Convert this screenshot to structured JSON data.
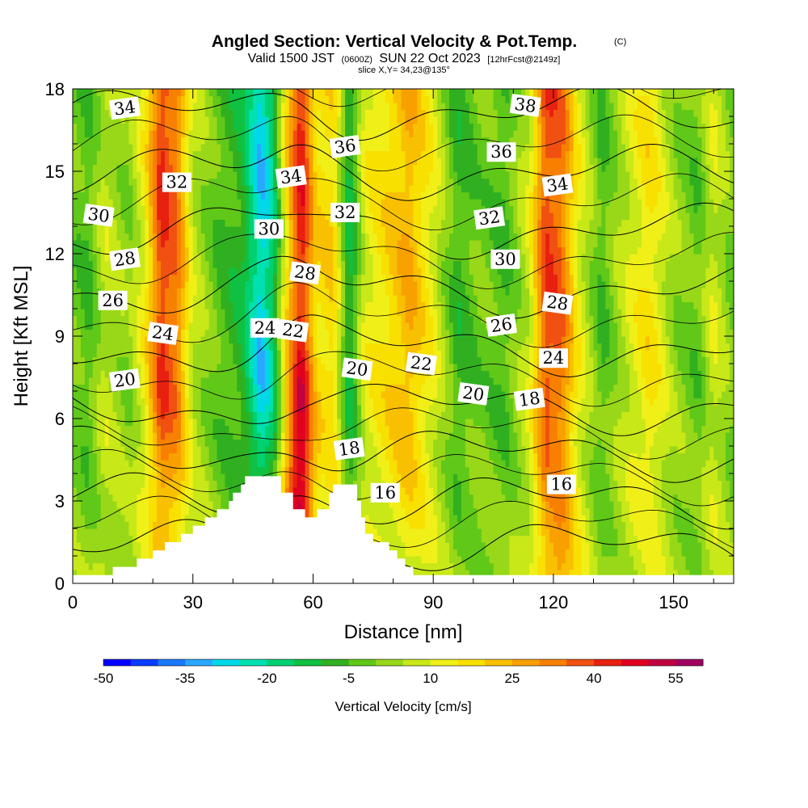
{
  "chart_data": {
    "type": "heatmap",
    "title": "Angled Section: Vertical Velocity & Pot.Temp.",
    "title_mark": "(C)",
    "subtitle_a": "Valid 1500 JST",
    "subtitle_b": "(0600Z)",
    "subtitle_c": "SUN 22 Oct 2023",
    "subtitle_d": "[12hrFcst@2149z]",
    "subtitle2": "slice X,Y= 34,23@135°",
    "xlabel": "Distance [nm]",
    "ylabel": "Height [Kft MSL]",
    "xlim": [
      0,
      165
    ],
    "ylim": [
      0,
      18
    ],
    "xticks": [
      "0",
      "30",
      "60",
      "90",
      "120",
      "150"
    ],
    "yticks": [
      "0",
      "3",
      "6",
      "9",
      "12",
      "15",
      "18"
    ],
    "colorbar": {
      "label": "Vertical Velocity [cm/s]",
      "tick_labels": [
        "-50",
        "-35",
        "-20",
        "-5",
        "10",
        "25",
        "40",
        "55"
      ],
      "levels": [
        -50,
        -45,
        -40,
        -35,
        -30,
        -25,
        -20,
        -15,
        -10,
        -5,
        0,
        5,
        10,
        15,
        20,
        25,
        30,
        35,
        40,
        45,
        50,
        55,
        60
      ],
      "colors": [
        "#0000ff",
        "#0a3cff",
        "#1a78ff",
        "#2aa8ff",
        "#00d8e8",
        "#00e0b0",
        "#00d070",
        "#10c040",
        "#30b020",
        "#60c818",
        "#98d818",
        "#c8e818",
        "#f0f018",
        "#f8e000",
        "#f8c000",
        "#f8a000",
        "#f88000",
        "#f05010",
        "#e82010",
        "#e00020",
        "#c00040",
        "#a00060",
        "#7a0088",
        "#500098"
      ]
    },
    "vertical_velocity_columns": [
      {
        "x": 0,
        "w": -6
      },
      {
        "x": 4,
        "w": -10
      },
      {
        "x": 8,
        "w": 2
      },
      {
        "x": 14,
        "w": -4
      },
      {
        "x": 18,
        "w": 8
      },
      {
        "x": 22,
        "w": 36
      },
      {
        "x": 26,
        "w": 28
      },
      {
        "x": 30,
        "w": 2
      },
      {
        "x": 36,
        "w": -8
      },
      {
        "x": 42,
        "w": -14
      },
      {
        "x": 47,
        "w": -34
      },
      {
        "x": 50,
        "w": -22
      },
      {
        "x": 54,
        "w": 18
      },
      {
        "x": 57,
        "w": 40
      },
      {
        "x": 61,
        "w": 12
      },
      {
        "x": 65,
        "w": 14
      },
      {
        "x": 69,
        "w": -18
      },
      {
        "x": 73,
        "w": 6
      },
      {
        "x": 78,
        "w": 12
      },
      {
        "x": 84,
        "w": 20
      },
      {
        "x": 90,
        "w": 6
      },
      {
        "x": 96,
        "w": -12
      },
      {
        "x": 102,
        "w": -6
      },
      {
        "x": 108,
        "w": -10
      },
      {
        "x": 114,
        "w": 4
      },
      {
        "x": 118,
        "w": 34
      },
      {
        "x": 122,
        "w": 30
      },
      {
        "x": 126,
        "w": 8
      },
      {
        "x": 132,
        "w": -10
      },
      {
        "x": 138,
        "w": 2
      },
      {
        "x": 144,
        "w": 12
      },
      {
        "x": 150,
        "w": -2
      },
      {
        "x": 156,
        "w": -8
      },
      {
        "x": 160,
        "w": 4
      },
      {
        "x": 165,
        "w": -6
      }
    ],
    "theta_levels": [
      16,
      18,
      20,
      22,
      24,
      26,
      28,
      30,
      32,
      34,
      36,
      38
    ],
    "contour_labels": [
      {
        "x": 13,
        "y": 17.3,
        "text": "34"
      },
      {
        "x": 26,
        "y": 14.6,
        "text": "32"
      },
      {
        "x": 6.5,
        "y": 13.4,
        "text": "30"
      },
      {
        "x": 13,
        "y": 11.8,
        "text": "28"
      },
      {
        "x": 10,
        "y": 10.3,
        "text": "26"
      },
      {
        "x": 22.5,
        "y": 9.1,
        "text": "24"
      },
      {
        "x": 13,
        "y": 7.4,
        "text": "20"
      },
      {
        "x": 48,
        "y": 9.3,
        "text": "24"
      },
      {
        "x": 55,
        "y": 9.2,
        "text": "22"
      },
      {
        "x": 54.5,
        "y": 14.8,
        "text": "34"
      },
      {
        "x": 49,
        "y": 12.9,
        "text": "30"
      },
      {
        "x": 58,
        "y": 11.3,
        "text": "28"
      },
      {
        "x": 68,
        "y": 15.9,
        "text": "36"
      },
      {
        "x": 68,
        "y": 13.5,
        "text": "32"
      },
      {
        "x": 71,
        "y": 7.8,
        "text": "20"
      },
      {
        "x": 69,
        "y": 4.9,
        "text": "18"
      },
      {
        "x": 78,
        "y": 3.3,
        "text": "16"
      },
      {
        "x": 87,
        "y": 8.0,
        "text": "22"
      },
      {
        "x": 104,
        "y": 13.3,
        "text": "32"
      },
      {
        "x": 107,
        "y": 15.7,
        "text": "36"
      },
      {
        "x": 113,
        "y": 17.4,
        "text": "38"
      },
      {
        "x": 121,
        "y": 14.5,
        "text": "34"
      },
      {
        "x": 108,
        "y": 11.8,
        "text": "30"
      },
      {
        "x": 121,
        "y": 10.2,
        "text": "28"
      },
      {
        "x": 107,
        "y": 9.4,
        "text": "26"
      },
      {
        "x": 120,
        "y": 8.2,
        "text": "24"
      },
      {
        "x": 100,
        "y": 6.9,
        "text": "20"
      },
      {
        "x": 114,
        "y": 6.7,
        "text": "18"
      },
      {
        "x": 122,
        "y": 3.6,
        "text": "16"
      }
    ],
    "terrain_profile": [
      {
        "x": 0,
        "z": 0.3
      },
      {
        "x": 10,
        "z": 0.3
      },
      {
        "x": 10,
        "z": 0.6
      },
      {
        "x": 16,
        "z": 0.6
      },
      {
        "x": 16,
        "z": 0.9
      },
      {
        "x": 20,
        "z": 0.9
      },
      {
        "x": 20,
        "z": 1.2
      },
      {
        "x": 23,
        "z": 1.2
      },
      {
        "x": 23,
        "z": 1.5
      },
      {
        "x": 27,
        "z": 1.5
      },
      {
        "x": 27,
        "z": 1.8
      },
      {
        "x": 30,
        "z": 1.8
      },
      {
        "x": 30,
        "z": 2.1
      },
      {
        "x": 33,
        "z": 2.1
      },
      {
        "x": 33,
        "z": 2.4
      },
      {
        "x": 36,
        "z": 2.4
      },
      {
        "x": 36,
        "z": 2.7
      },
      {
        "x": 39,
        "z": 2.7
      },
      {
        "x": 39,
        "z": 3.0
      },
      {
        "x": 40,
        "z": 3.0
      },
      {
        "x": 40,
        "z": 3.3
      },
      {
        "x": 42,
        "z": 3.3
      },
      {
        "x": 42,
        "z": 3.6
      },
      {
        "x": 43,
        "z": 3.6
      },
      {
        "x": 43,
        "z": 3.9
      },
      {
        "x": 52,
        "z": 3.9
      },
      {
        "x": 52,
        "z": 3.3
      },
      {
        "x": 55,
        "z": 3.3
      },
      {
        "x": 55,
        "z": 2.7
      },
      {
        "x": 58,
        "z": 2.7
      },
      {
        "x": 58,
        "z": 2.4
      },
      {
        "x": 61,
        "z": 2.4
      },
      {
        "x": 61,
        "z": 2.7
      },
      {
        "x": 64,
        "z": 2.7
      },
      {
        "x": 64,
        "z": 3.3
      },
      {
        "x": 65,
        "z": 3.3
      },
      {
        "x": 65,
        "z": 3.6
      },
      {
        "x": 71,
        "z": 3.6
      },
      {
        "x": 71,
        "z": 3.0
      },
      {
        "x": 72,
        "z": 3.0
      },
      {
        "x": 72,
        "z": 2.4
      },
      {
        "x": 73,
        "z": 2.4
      },
      {
        "x": 73,
        "z": 1.8
      },
      {
        "x": 75,
        "z": 1.8
      },
      {
        "x": 75,
        "z": 1.5
      },
      {
        "x": 79,
        "z": 1.5
      },
      {
        "x": 79,
        "z": 1.2
      },
      {
        "x": 81,
        "z": 1.2
      },
      {
        "x": 81,
        "z": 0.9
      },
      {
        "x": 83,
        "z": 0.9
      },
      {
        "x": 83,
        "z": 0.6
      },
      {
        "x": 85,
        "z": 0.6
      },
      {
        "x": 85,
        "z": 0.3
      },
      {
        "x": 165,
        "z": 0.3
      }
    ],
    "grid": false,
    "legend": "bottom"
  }
}
